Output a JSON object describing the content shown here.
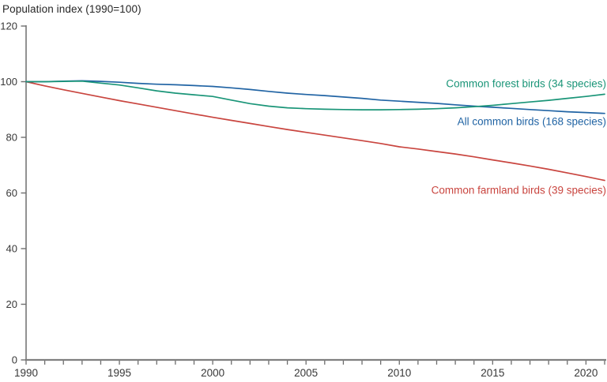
{
  "chart_data": {
    "type": "line",
    "title": "Population index (1990=100)",
    "xlabel": "",
    "ylabel": "Population index (1990=100)",
    "xlim": [
      1990,
      2021
    ],
    "ylim": [
      0,
      120
    ],
    "yticks": [
      0,
      20,
      40,
      60,
      80,
      100,
      120
    ],
    "xticks": [
      1990,
      1995,
      2000,
      2005,
      2010,
      2015,
      2020
    ],
    "xtick_minor_step": 1,
    "grid": false,
    "legend_position": "end-of-line-annotations",
    "axis_color": "#7f7f7f",
    "tick_text_color": "#383838",
    "x": [
      1990,
      1991,
      1992,
      1993,
      1994,
      1995,
      1996,
      1997,
      1998,
      1999,
      2000,
      2001,
      2002,
      2003,
      2004,
      2005,
      2006,
      2007,
      2008,
      2009,
      2010,
      2011,
      2012,
      2013,
      2014,
      2015,
      2016,
      2017,
      2018,
      2019,
      2020,
      2021
    ],
    "series": [
      {
        "name": "Common farmland birds (39 species)",
        "color": "#c9453f",
        "label_side": "below",
        "label_dy": 17,
        "values": [
          100,
          98.5,
          97.1,
          95.8,
          94.5,
          93.2,
          92.0,
          90.8,
          89.6,
          88.4,
          87.2,
          86.1,
          85.0,
          83.9,
          82.8,
          81.8,
          80.8,
          79.8,
          78.8,
          77.8,
          76.6,
          75.8,
          74.9,
          74.0,
          73.0,
          71.9,
          70.8,
          69.7,
          68.5,
          67.2,
          65.9,
          64.5
        ]
      },
      {
        "name": "All common birds (168 species)",
        "color": "#2164a4",
        "label_side": "below",
        "label_dy": 15,
        "values": [
          100,
          100,
          100.2,
          100.3,
          100.1,
          99.8,
          99.4,
          99.1,
          98.9,
          98.6,
          98.3,
          97.8,
          97.2,
          96.5,
          95.9,
          95.4,
          95.0,
          94.5,
          94.0,
          93.4,
          93.0,
          92.6,
          92.2,
          91.7,
          91.2,
          90.8,
          90.4,
          90.0,
          89.6,
          89.2,
          88.9,
          88.6
        ]
      },
      {
        "name": "Common forest birds (34 species)",
        "color": "#1a9578",
        "label_side": "above",
        "label_dy": -9,
        "values": [
          100,
          100,
          100.1,
          100.2,
          99.5,
          98.8,
          97.8,
          96.7,
          95.9,
          95.3,
          94.7,
          93.4,
          92.1,
          91.2,
          90.6,
          90.3,
          90.1,
          90.0,
          89.9,
          89.9,
          90.0,
          90.1,
          90.3,
          90.6,
          91.0,
          91.5,
          92.1,
          92.7,
          93.3,
          94.0,
          94.7,
          95.5
        ]
      }
    ]
  }
}
